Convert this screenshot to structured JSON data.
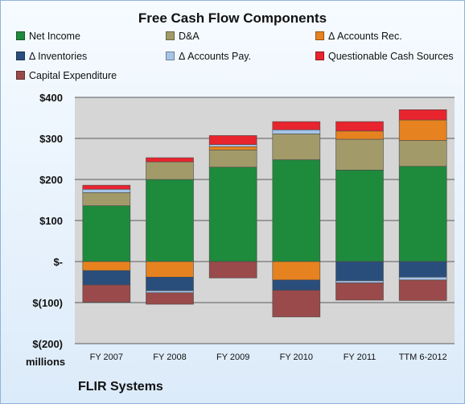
{
  "chart_data": {
    "type": "bar",
    "stacked": true,
    "title": "Free Cash Flow Components",
    "units_label": "millions",
    "source_label": "FLIR Systems",
    "categories": [
      "FY 2007",
      "FY 2008",
      "FY 2009",
      "FY 2010",
      "FY 2011",
      "TTM 6-2012"
    ],
    "ylim": [
      -200,
      400
    ],
    "yticks": [
      400,
      300,
      200,
      100,
      0,
      -100,
      -200
    ],
    "ytick_labels": [
      "$400",
      "$300",
      "$200",
      "$100",
      "$-",
      "$(100)",
      "$(200)"
    ],
    "grid": true,
    "legend_position": "top",
    "series": [
      {
        "name": "Net Income",
        "color": "#1e8a3c",
        "values": [
          136,
          200,
          230,
          248,
          223,
          232
        ]
      },
      {
        "name": "D&A",
        "color": "#a39a6a",
        "values": [
          32,
          43,
          42,
          63,
          75,
          63
        ]
      },
      {
        "name": "Δ Accounts Rec.",
        "color": "#e6821f",
        "values": [
          -22,
          -38,
          8,
          -45,
          20,
          50
        ]
      },
      {
        "name": "Δ Inventories",
        "color": "#2a4e7c",
        "values": [
          -35,
          -33,
          0,
          -25,
          -47,
          -38
        ]
      },
      {
        "name": "Δ Accounts Pay.",
        "color": "#a6c4e8",
        "values": [
          8,
          -5,
          5,
          10,
          -5,
          -7
        ]
      },
      {
        "name": "Questionable Cash Sources",
        "color": "#e8242e",
        "values": [
          10,
          10,
          22,
          20,
          23,
          25
        ]
      },
      {
        "name": "Capital Expenditure",
        "color": "#9a4a4a",
        "values": [
          -42,
          -28,
          -40,
          -65,
          -42,
          -50
        ]
      }
    ]
  }
}
